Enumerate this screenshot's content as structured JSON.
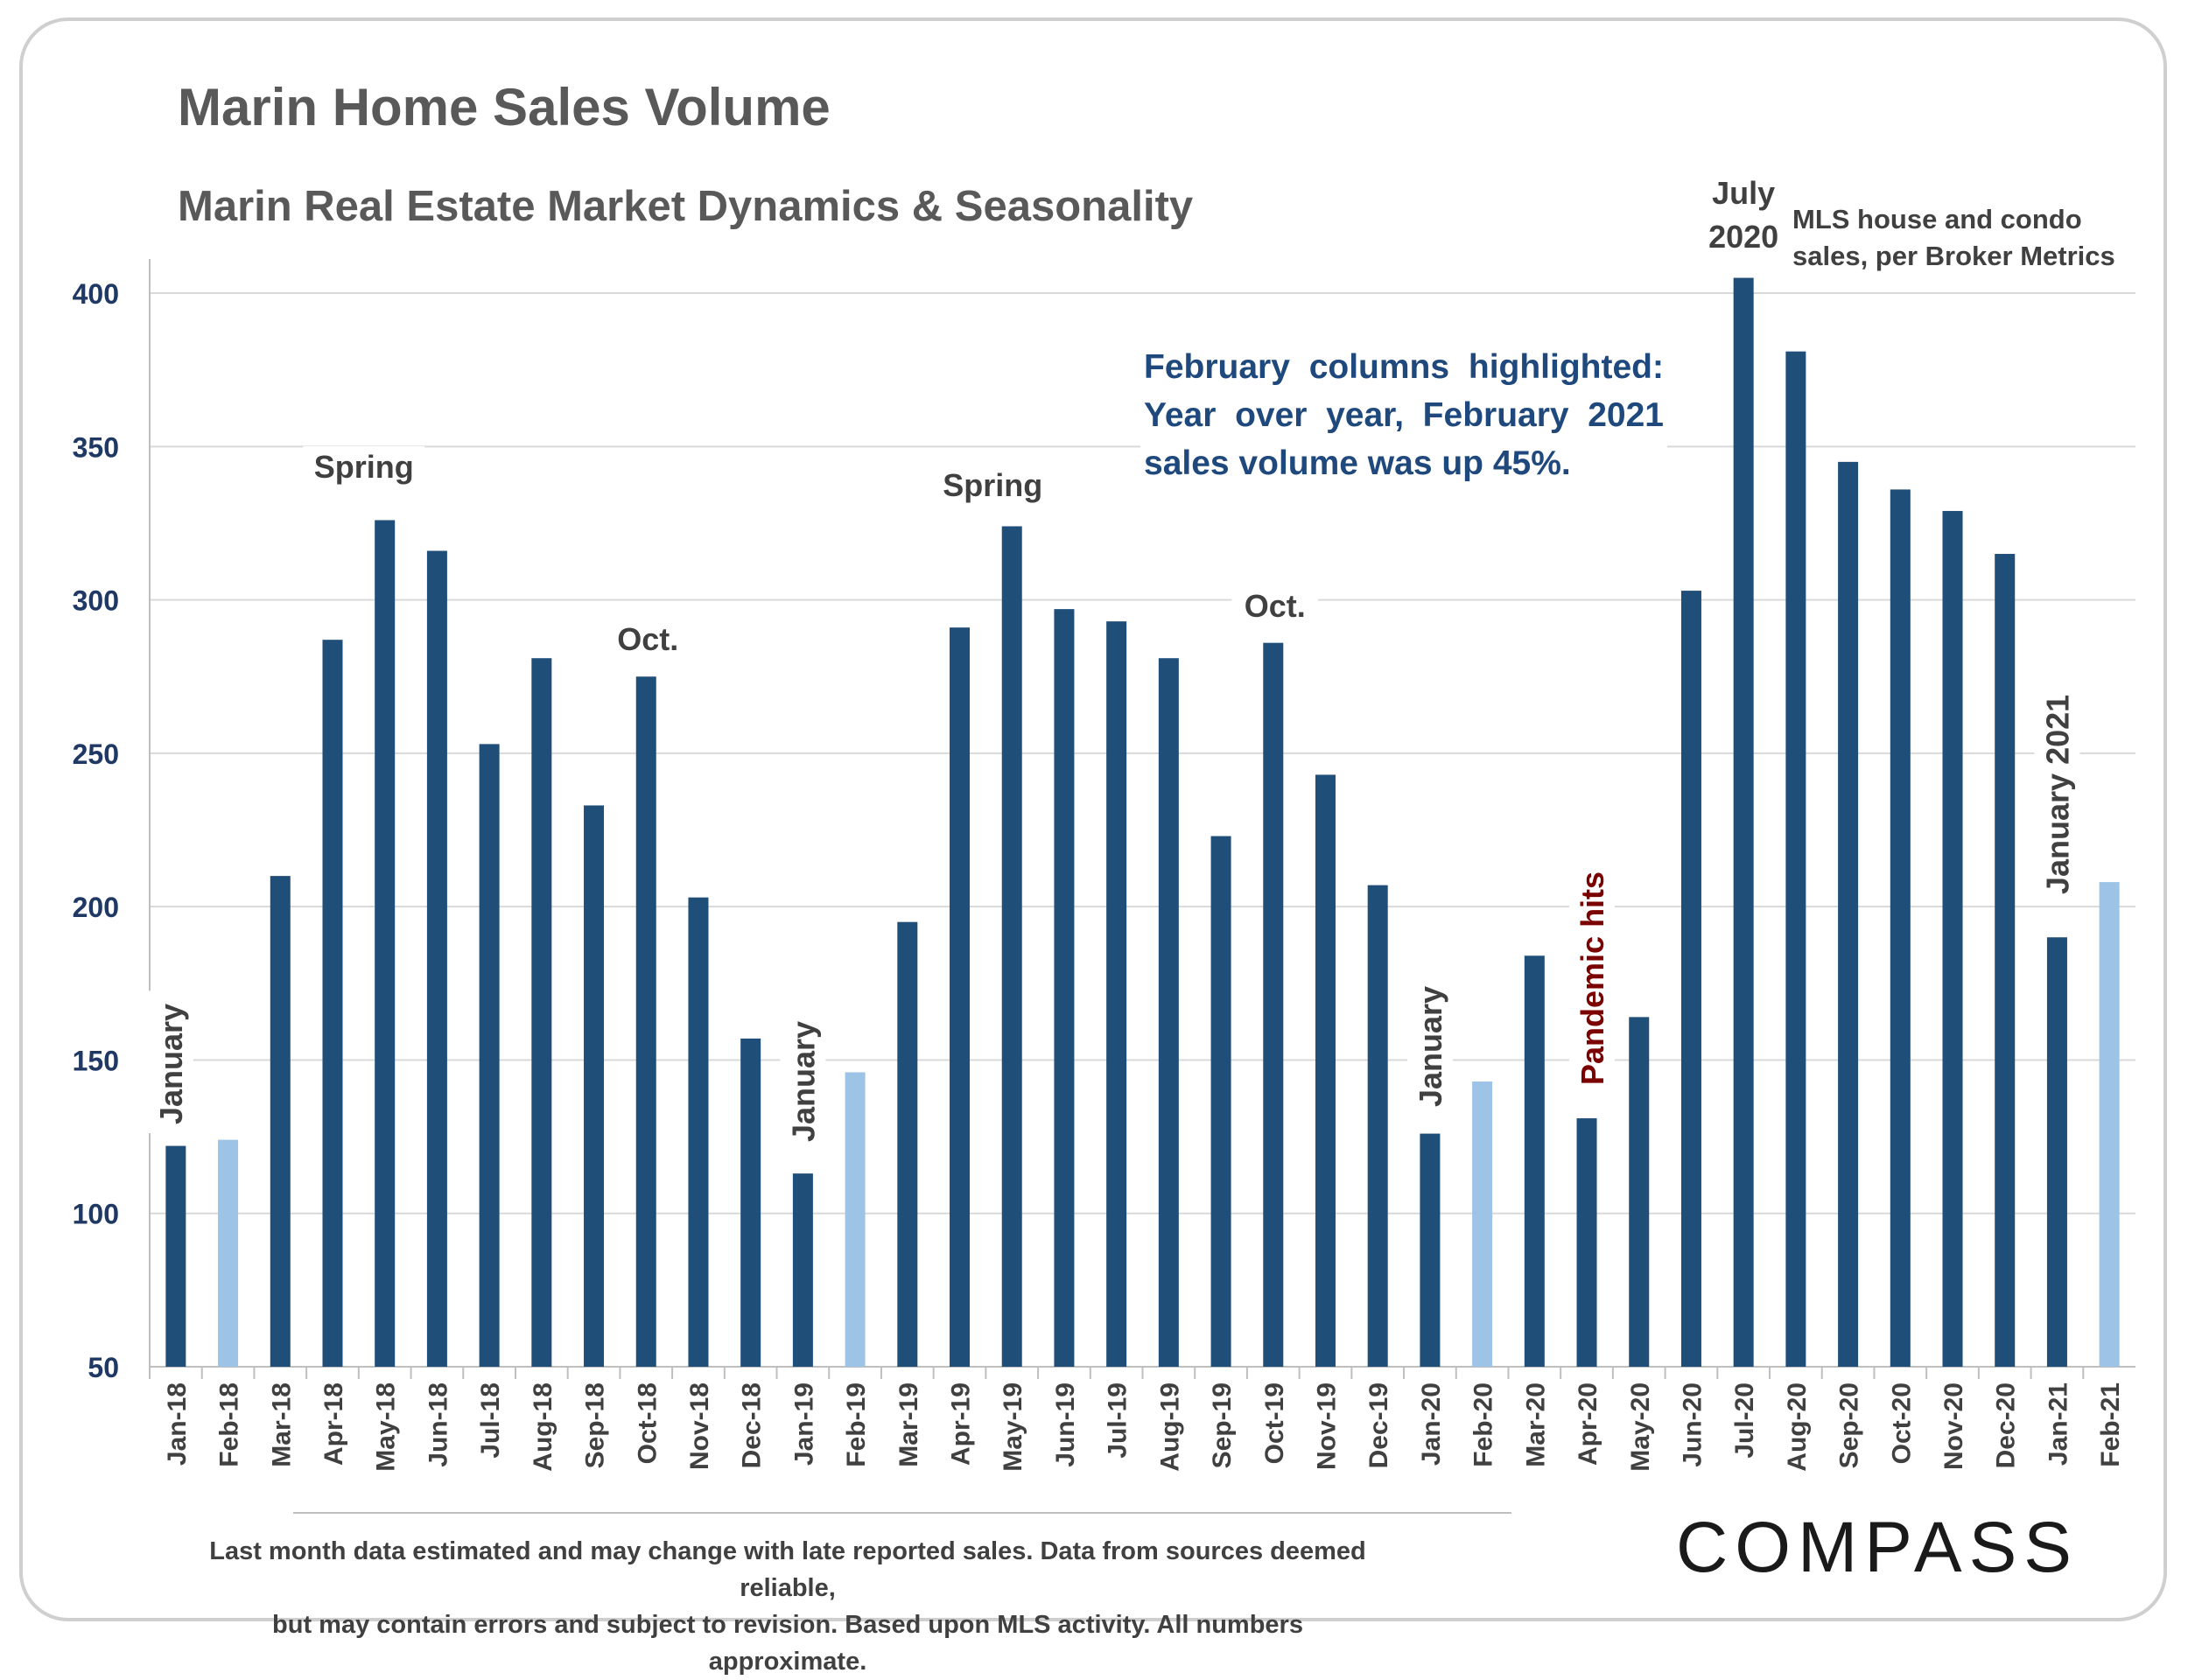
{
  "header": {
    "title": "Marin Home Sales Volume",
    "subtitle": "Marin Real Estate Market Dynamics & Seasonality",
    "source_note": "MLS house and condo sales, per Broker Metrics"
  },
  "annotation": {
    "february_note": "February columns highlighted: Year over year, February 2021 sales volume was up 45%."
  },
  "footer": {
    "disclaimer_line1": "Last month data estimated and may change with late reported sales. Data from sources deemed reliable,",
    "disclaimer_line2": "but may contain errors and subject to revision. Based upon MLS activity. All numbers approximate."
  },
  "brand": {
    "logo_text": "COMPASS"
  },
  "colors": {
    "bar": "#1f4e79",
    "highlight_bar": "#9dc3e6",
    "axis_label": "#1f3864",
    "pandemic": "#7b0000",
    "annotation_text": "#1f497d"
  },
  "chart_data": {
    "type": "bar",
    "title": "Marin Home Sales Volume",
    "subtitle": "Marin Real Estate Market Dynamics & Seasonality",
    "xlabel": "",
    "ylabel": "",
    "ylim": [
      50,
      410
    ],
    "yticks": [
      50,
      100,
      150,
      200,
      250,
      300,
      350,
      400
    ],
    "grid": true,
    "categories": [
      "Jan-18",
      "Feb-18",
      "Mar-18",
      "Apr-18",
      "May-18",
      "Jun-18",
      "Jul-18",
      "Aug-18",
      "Sep-18",
      "Oct-18",
      "Nov-18",
      "Dec-18",
      "Jan-19",
      "Feb-19",
      "Mar-19",
      "Apr-19",
      "May-19",
      "Jun-19",
      "Jul-19",
      "Aug-19",
      "Sep-19",
      "Oct-19",
      "Nov-19",
      "Dec-19",
      "Jan-20",
      "Feb-20",
      "Mar-20",
      "Apr-20",
      "May-20",
      "Jun-20",
      "Jul-20",
      "Aug-20",
      "Sep-20",
      "Oct-20",
      "Nov-20",
      "Dec-20",
      "Jan-21",
      "Feb-21"
    ],
    "values": [
      122,
      124,
      210,
      287,
      326,
      316,
      253,
      281,
      233,
      275,
      203,
      157,
      113,
      146,
      195,
      291,
      324,
      297,
      293,
      281,
      223,
      286,
      243,
      207,
      126,
      143,
      184,
      131,
      164,
      303,
      405,
      381,
      345,
      336,
      329,
      315,
      190,
      208
    ],
    "highlighted": [
      "Feb-18",
      "Feb-19",
      "Feb-20",
      "Feb-21"
    ],
    "annotations": [
      {
        "text": "January",
        "at": "Jan-18",
        "rotated": true
      },
      {
        "text": "Spring",
        "at": "May-18",
        "rotated": false
      },
      {
        "text": "Oct.",
        "at": "Oct-18",
        "rotated": false
      },
      {
        "text": "January",
        "at": "Jan-19",
        "rotated": true
      },
      {
        "text": "Spring",
        "at": "May-19",
        "rotated": false
      },
      {
        "text": "Oct.",
        "at": "Oct-19",
        "rotated": false
      },
      {
        "text": "January",
        "at": "Jan-20",
        "rotated": true
      },
      {
        "text": "Pandemic hits",
        "at": "Apr-20",
        "rotated": true,
        "style": "pandemic"
      },
      {
        "text": "July",
        "at": "Jul-20",
        "rotated": false
      },
      {
        "text": "2020",
        "at": "Jul-20",
        "rotated": false
      },
      {
        "text": "January 2021",
        "at": "Jan-21",
        "rotated": true
      }
    ]
  }
}
